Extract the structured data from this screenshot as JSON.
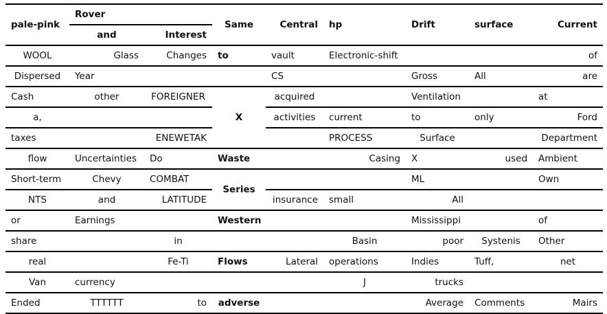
{
  "headers": {
    "c1": "pale-pink",
    "rover": "Rover",
    "c2": "and",
    "c3": "Interest",
    "c4": "Same",
    "c5": "Central",
    "c6": "hp",
    "c7": "Drift",
    "c8": "surface",
    "c9": "Current"
  },
  "rows": [
    [
      "WOOL",
      "Glass",
      "Changes",
      "to",
      "vault",
      "Electronic-shift",
      "",
      "",
      "of"
    ],
    [
      "Dispersed",
      "Year",
      "",
      "",
      "CS",
      "",
      "Gross",
      "All",
      "are"
    ],
    [
      "Cash",
      "other",
      "FOREIGNER",
      "",
      "acquired",
      "",
      "Ventilation",
      "",
      "at"
    ],
    [
      "a,",
      "",
      "",
      "X",
      "activities",
      "current",
      "to",
      "only",
      "Ford"
    ],
    [
      "taxes",
      "",
      "ENEWETAK",
      "",
      "",
      "PROCESS",
      "Surface",
      "",
      "Department"
    ],
    [
      "flow",
      "Uncertainties",
      "Do",
      "Waste",
      "",
      "Casing",
      "X",
      "used",
      "Ambient"
    ],
    [
      "Short-term",
      "Chevy",
      "COMBAT",
      "Series",
      "",
      "",
      "ML",
      "",
      "Own"
    ],
    [
      "NTS",
      "and",
      "LATITUDE",
      "",
      "insurance",
      "small",
      "All",
      "",
      ""
    ],
    [
      "or",
      "Earnings",
      "",
      "Western",
      "",
      "",
      "Mississippi",
      "",
      "of"
    ],
    [
      "share",
      "",
      "in",
      "",
      "",
      "Basin",
      "poor",
      "Systenis",
      "Other"
    ],
    [
      "real",
      "",
      "Fe-Ti",
      "Flows",
      "Lateral",
      "operations",
      "Indies",
      "Tuff,",
      "net"
    ],
    [
      "Van",
      "currency",
      "",
      "",
      "",
      "J",
      "trucks",
      "",
      ""
    ],
    [
      "Ended",
      "TTTTTT",
      "to",
      "adverse",
      "",
      "",
      "Average",
      "Comments",
      "Mairs"
    ]
  ]
}
